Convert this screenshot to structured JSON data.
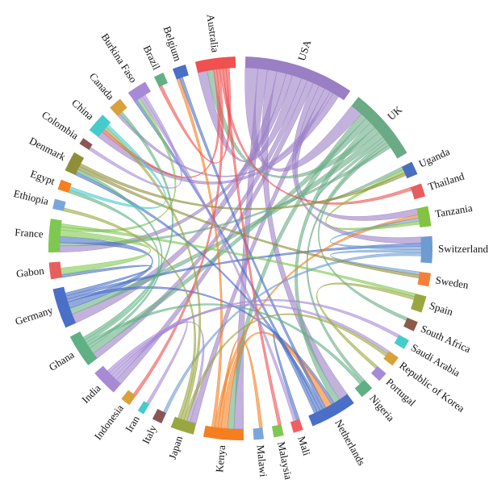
{
  "chart_data": {
    "type": "chord",
    "categories": [
      "USA",
      "UK",
      "Uganda",
      "Thailand",
      "Tanzania",
      "Switzerland",
      "Sweden",
      "Spain",
      "South Africa",
      "Saudi Arabia",
      "Republic of Korea",
      "Portugal",
      "Nigeria",
      "Netherlands",
      "Mali",
      "Malaysia",
      "Malawi",
      "Kenya",
      "Japan",
      "Italy",
      "Iran",
      "Indonesia",
      "India",
      "Ghana",
      "Germany",
      "Gabon",
      "France",
      "Ethiopia",
      "Egypt",
      "Denmark",
      "Colombia",
      "China",
      "Canada",
      "Burkina Faso",
      "Brazil",
      "Belgium",
      "Australia"
    ],
    "values": [
      33,
      22,
      4,
      4,
      6,
      8,
      4,
      5,
      3,
      3,
      3,
      3,
      4,
      14,
      3,
      3,
      3,
      12,
      7,
      3,
      2,
      3,
      8,
      10,
      12,
      5,
      10,
      3,
      3,
      6,
      2,
      6,
      4,
      6,
      3,
      4,
      12
    ],
    "colors": [
      "#9b7fc4",
      "#6aab86",
      "#4a6fbf",
      "#e65e5e",
      "#82c341",
      "#6e9bd1",
      "#f57f3a",
      "#9aa640",
      "#8a5a4a",
      "#44cccc",
      "#d9a13a",
      "#a78ad6",
      "#5fb083",
      "#4a6fc6",
      "#f06060",
      "#7ec850",
      "#7aa6dc",
      "#f57f20",
      "#9aa640",
      "#8a5555",
      "#44cccc",
      "#d9a13a",
      "#a78ad6",
      "#5fb083",
      "#4a6fc6",
      "#e65e5e",
      "#7ec850",
      "#7aa6dc",
      "#f57f20",
      "#8f8f3a",
      "#8a5555",
      "#44cccc",
      "#d9a13a",
      "#a78ad6",
      "#5fb083",
      "#4a6fc6",
      "#f05050"
    ],
    "links": [
      {
        "source": "USA",
        "target": "UK",
        "value": 4
      },
      {
        "source": "USA",
        "target": "Kenya",
        "value": 3
      },
      {
        "source": "USA",
        "target": "Netherlands",
        "value": 3
      },
      {
        "source": "USA",
        "target": "Germany",
        "value": 3
      },
      {
        "source": "USA",
        "target": "France",
        "value": 2
      },
      {
        "source": "USA",
        "target": "Australia",
        "value": 3
      },
      {
        "source": "USA",
        "target": "Ghana",
        "value": 2
      },
      {
        "source": "USA",
        "target": "India",
        "value": 2
      },
      {
        "source": "USA",
        "target": "Switzerland",
        "value": 2
      },
      {
        "source": "USA",
        "target": "Tanzania",
        "value": 2
      },
      {
        "source": "USA",
        "target": "Japan",
        "value": 2
      },
      {
        "source": "USA",
        "target": "Canada",
        "value": 1
      },
      {
        "source": "USA",
        "target": "China",
        "value": 2
      },
      {
        "source": "UK",
        "target": "Kenya",
        "value": 2
      },
      {
        "source": "UK",
        "target": "Ghana",
        "value": 2
      },
      {
        "source": "UK",
        "target": "Netherlands",
        "value": 2
      },
      {
        "source": "UK",
        "target": "Australia",
        "value": 2
      },
      {
        "source": "UK",
        "target": "Germany",
        "value": 2
      },
      {
        "source": "UK",
        "target": "Uganda",
        "value": 1
      },
      {
        "source": "UK",
        "target": "Nigeria",
        "value": 1
      },
      {
        "source": "UK",
        "target": "South Africa",
        "value": 1
      },
      {
        "source": "UK",
        "target": "France",
        "value": 1
      },
      {
        "source": "Germany",
        "target": "France",
        "value": 2
      },
      {
        "source": "Germany",
        "target": "Netherlands",
        "value": 1
      },
      {
        "source": "Germany",
        "target": "Switzerland",
        "value": 1
      },
      {
        "source": "Germany",
        "target": "Gabon",
        "value": 1
      },
      {
        "source": "Kenya",
        "target": "Netherlands",
        "value": 2
      },
      {
        "source": "Kenya",
        "target": "Malawi",
        "value": 1
      },
      {
        "source": "Kenya",
        "target": "Tanzania",
        "value": 1
      },
      {
        "source": "Kenya",
        "target": "Belgium",
        "value": 1
      },
      {
        "source": "Netherlands",
        "target": "Belgium",
        "value": 1
      },
      {
        "source": "Netherlands",
        "target": "Denmark",
        "value": 1
      },
      {
        "source": "Netherlands",
        "target": "Mali",
        "value": 1
      },
      {
        "source": "Netherlands",
        "target": "Burkina Faso",
        "value": 1
      },
      {
        "source": "Australia",
        "target": "China",
        "value": 1
      },
      {
        "source": "Australia",
        "target": "Indonesia",
        "value": 1
      },
      {
        "source": "Australia",
        "target": "Thailand",
        "value": 1
      },
      {
        "source": "Australia",
        "target": "Malaysia",
        "value": 1
      },
      {
        "source": "Australia",
        "target": "Brazil",
        "value": 1
      },
      {
        "source": "France",
        "target": "Gabon",
        "value": 2
      },
      {
        "source": "France",
        "target": "Burkina Faso",
        "value": 1
      },
      {
        "source": "France",
        "target": "Spain",
        "value": 1
      },
      {
        "source": "Ghana",
        "target": "Denmark",
        "value": 1
      },
      {
        "source": "Ghana",
        "target": "Nigeria",
        "value": 1
      },
      {
        "source": "Ghana",
        "target": "Egypt",
        "value": 1
      },
      {
        "source": "Ghana",
        "target": "Canada",
        "value": 1
      },
      {
        "source": "Switzerland",
        "target": "Tanzania",
        "value": 1
      },
      {
        "source": "Switzerland",
        "target": "Sweden",
        "value": 1
      },
      {
        "source": "Switzerland",
        "target": "Italy",
        "value": 1
      },
      {
        "source": "India",
        "target": "Iran",
        "value": 1
      },
      {
        "source": "India",
        "target": "Japan",
        "value": 1
      },
      {
        "source": "India",
        "target": "Saudi Arabia",
        "value": 1
      },
      {
        "source": "India",
        "target": "Republic of Korea",
        "value": 1
      },
      {
        "source": "Tanzania",
        "target": "Uganda",
        "value": 1
      },
      {
        "source": "Japan",
        "target": "Republic of Korea",
        "value": 1
      },
      {
        "source": "Japan",
        "target": "China",
        "value": 1
      },
      {
        "source": "Japan",
        "target": "Ethiopia",
        "value": 1
      },
      {
        "source": "Denmark",
        "target": "Sweden",
        "value": 1
      },
      {
        "source": "Denmark",
        "target": "Uganda",
        "value": 1
      },
      {
        "source": "Burkina Faso",
        "target": "Mali",
        "value": 1
      },
      {
        "source": "Burkina Faso",
        "target": "Colombia",
        "value": 1
      },
      {
        "source": "China",
        "target": "Egypt",
        "value": 1
      },
      {
        "source": "Spain",
        "target": "Portugal",
        "value": 1
      }
    ]
  }
}
